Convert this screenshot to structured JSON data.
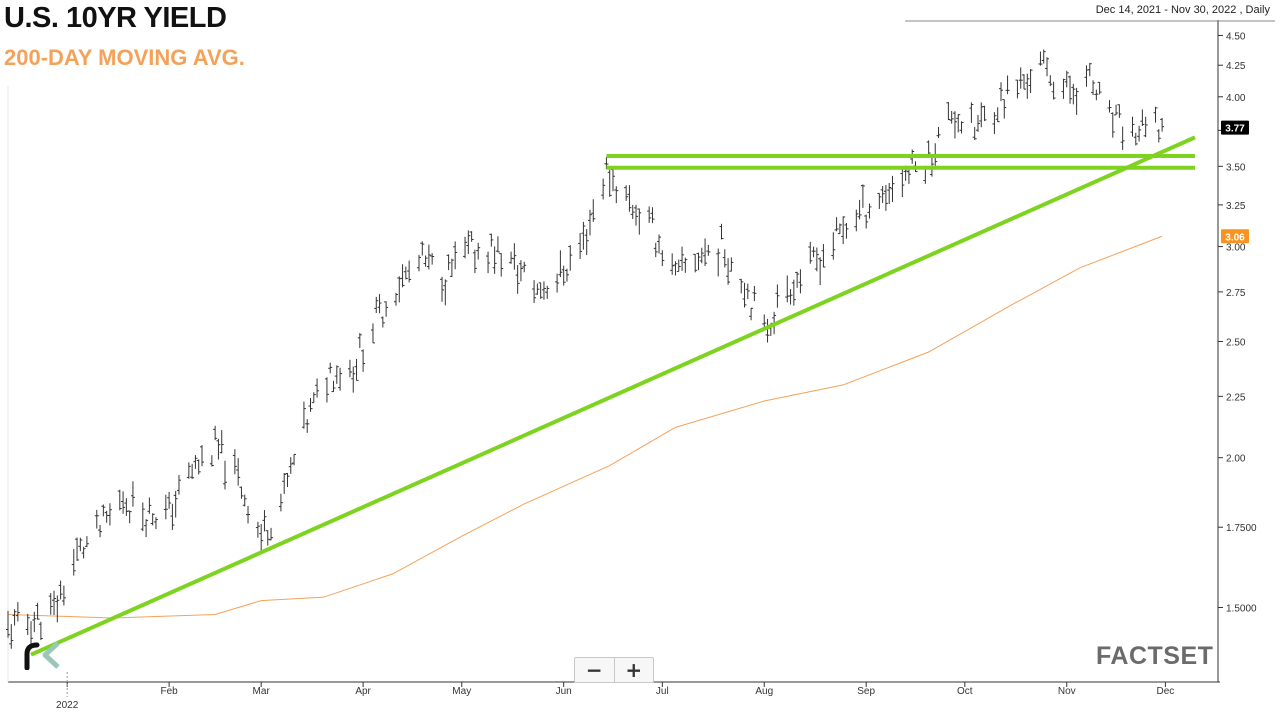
{
  "header": {
    "title": "U.S. 10YR YIELD",
    "subtitle": "200-DAY MOVING AVG.",
    "date_range": "Dec 14, 2021 - Nov 30, 2022 , Daily"
  },
  "controls": {
    "zoom_out": "−",
    "zoom_in": "+"
  },
  "branding": {
    "watermark": "FACTSET"
  },
  "colors": {
    "bars": "#333333",
    "moving_average": "#f4a25a",
    "trendlines": "#7ed321",
    "axis": "#333333",
    "last_price_tag": "#000000",
    "ma_tag": "#f7931e"
  },
  "chart_data": {
    "type": "line",
    "title": "U.S. 10YR YIELD",
    "subtitle": "200-DAY MOVING AVG.",
    "xlabel": "",
    "ylabel": "",
    "y_scale": "log",
    "ylim": [
      1.3,
      4.6
    ],
    "grid": false,
    "x_tick_labels": [
      "2022",
      "Feb",
      "Mar",
      "Apr",
      "May",
      "Jun",
      "Jul",
      "Aug",
      "Sep",
      "Oct",
      "Nov",
      "Dec"
    ],
    "x_ticks": [
      "2022-01-01",
      "2022-02-01",
      "2022-03-01",
      "2022-04-01",
      "2022-05-01",
      "2022-06-01",
      "2022-07-01",
      "2022-08-01",
      "2022-09-01",
      "2022-10-01",
      "2022-11-01",
      "2022-12-01"
    ],
    "y_ticks": [
      1.5,
      1.75,
      2.0,
      2.25,
      2.5,
      2.75,
      3.0,
      3.25,
      3.5,
      3.75,
      4.0,
      4.25,
      4.5
    ],
    "y_tick_labels": [
      "1.5000",
      "1.7500",
      "2.00",
      "2.25",
      "2.50",
      "2.75",
      "3.00",
      "3.25",
      "3.50",
      "",
      "4.00",
      "4.25",
      "4.50"
    ],
    "series": [
      {
        "name": "U.S. 10YR YIELD",
        "style": "ohlc-bars",
        "points": [
          {
            "x": "2021-12-14",
            "y": 1.44
          },
          {
            "x": "2021-12-21",
            "y": 1.46
          },
          {
            "x": "2021-12-28",
            "y": 1.49
          },
          {
            "x": "2022-01-04",
            "y": 1.66
          },
          {
            "x": "2022-01-11",
            "y": 1.74
          },
          {
            "x": "2022-01-18",
            "y": 1.85
          },
          {
            "x": "2022-01-25",
            "y": 1.8
          },
          {
            "x": "2022-02-01",
            "y": 1.8
          },
          {
            "x": "2022-02-08",
            "y": 1.95
          },
          {
            "x": "2022-02-15",
            "y": 2.04
          },
          {
            "x": "2022-02-22",
            "y": 1.92
          },
          {
            "x": "2022-03-01",
            "y": 1.72
          },
          {
            "x": "2022-03-08",
            "y": 1.86
          },
          {
            "x": "2022-03-15",
            "y": 2.15
          },
          {
            "x": "2022-03-22",
            "y": 2.36
          },
          {
            "x": "2022-03-29",
            "y": 2.38
          },
          {
            "x": "2022-04-05",
            "y": 2.61
          },
          {
            "x": "2022-04-12",
            "y": 2.8
          },
          {
            "x": "2022-04-19",
            "y": 2.91
          },
          {
            "x": "2022-04-26",
            "y": 2.83
          },
          {
            "x": "2022-05-03",
            "y": 2.97
          },
          {
            "x": "2022-05-10",
            "y": 2.99
          },
          {
            "x": "2022-05-17",
            "y": 2.89
          },
          {
            "x": "2022-05-24",
            "y": 2.76
          },
          {
            "x": "2022-05-31",
            "y": 2.84
          },
          {
            "x": "2022-06-07",
            "y": 3.03
          },
          {
            "x": "2022-06-14",
            "y": 3.47
          },
          {
            "x": "2022-06-21",
            "y": 3.27
          },
          {
            "x": "2022-06-28",
            "y": 3.1
          },
          {
            "x": "2022-07-05",
            "y": 2.82
          },
          {
            "x": "2022-07-12",
            "y": 2.95
          },
          {
            "x": "2022-07-19",
            "y": 3.0
          },
          {
            "x": "2022-07-26",
            "y": 2.8
          },
          {
            "x": "2022-08-01",
            "y": 2.55
          },
          {
            "x": "2022-08-08",
            "y": 2.78
          },
          {
            "x": "2022-08-15",
            "y": 2.88
          },
          {
            "x": "2022-08-22",
            "y": 3.03
          },
          {
            "x": "2022-08-29",
            "y": 3.19
          },
          {
            "x": "2022-09-06",
            "y": 3.31
          },
          {
            "x": "2022-09-13",
            "y": 3.45
          },
          {
            "x": "2022-09-20",
            "y": 3.55
          },
          {
            "x": "2022-09-27",
            "y": 3.88
          },
          {
            "x": "2022-10-04",
            "y": 3.75
          },
          {
            "x": "2022-10-11",
            "y": 3.95
          },
          {
            "x": "2022-10-18",
            "y": 4.1
          },
          {
            "x": "2022-10-24",
            "y": 4.24
          },
          {
            "x": "2022-11-01",
            "y": 4.05
          },
          {
            "x": "2022-11-08",
            "y": 4.12
          },
          {
            "x": "2022-11-14",
            "y": 3.83
          },
          {
            "x": "2022-11-21",
            "y": 3.72
          },
          {
            "x": "2022-11-30",
            "y": 3.77
          }
        ]
      },
      {
        "name": "200-DAY MOVING AVG.",
        "style": "line",
        "points": [
          {
            "x": "2021-12-14",
            "y": 1.48
          },
          {
            "x": "2022-01-15",
            "y": 1.47
          },
          {
            "x": "2022-02-15",
            "y": 1.48
          },
          {
            "x": "2022-03-01",
            "y": 1.52
          },
          {
            "x": "2022-03-20",
            "y": 1.53
          },
          {
            "x": "2022-04-10",
            "y": 1.6
          },
          {
            "x": "2022-05-01",
            "y": 1.72
          },
          {
            "x": "2022-05-20",
            "y": 1.83
          },
          {
            "x": "2022-06-15",
            "y": 1.97
          },
          {
            "x": "2022-07-05",
            "y": 2.12
          },
          {
            "x": "2022-08-01",
            "y": 2.23
          },
          {
            "x": "2022-08-25",
            "y": 2.3
          },
          {
            "x": "2022-09-20",
            "y": 2.45
          },
          {
            "x": "2022-10-15",
            "y": 2.68
          },
          {
            "x": "2022-11-05",
            "y": 2.88
          },
          {
            "x": "2022-11-30",
            "y": 3.06
          }
        ]
      }
    ],
    "trendlines": [
      {
        "from": {
          "x": "2021-12-21",
          "y": 1.37
        },
        "to": {
          "x": "2022-12-10",
          "y": 3.7
        }
      },
      {
        "from": {
          "x": "2022-06-14",
          "y": 3.57
        },
        "to": {
          "x": "2022-12-10",
          "y": 3.57
        }
      },
      {
        "from": {
          "x": "2022-06-14",
          "y": 3.49
        },
        "to": {
          "x": "2022-12-10",
          "y": 3.49
        }
      }
    ],
    "price_tags": [
      {
        "label": "3.77",
        "value": 3.77,
        "role": "last"
      },
      {
        "label": "3.06",
        "value": 3.06,
        "role": "moving_average"
      }
    ]
  }
}
